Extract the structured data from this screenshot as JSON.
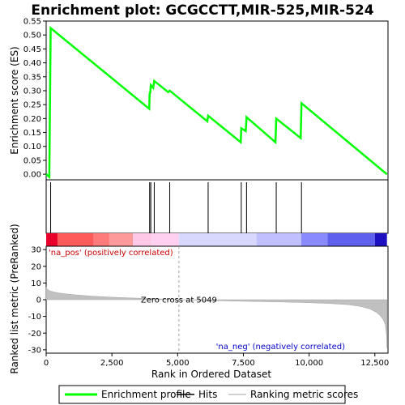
{
  "chart_data": {
    "type": "line",
    "title": "Enrichment plot: GCGCCTT,MIR-525,MIR-524",
    "es_panel": {
      "ylabel": "Enrichment score (ES)",
      "ylim": [
        -0.02,
        0.55
      ],
      "yticks": [
        0.0,
        0.05,
        0.1,
        0.15,
        0.2,
        0.25,
        0.3,
        0.35,
        0.4,
        0.45,
        0.5,
        0.55
      ],
      "ytick_labels": [
        "0.00",
        "0.05",
        "0.10",
        "0.15",
        "0.20",
        "0.25",
        "0.30",
        "0.35",
        "0.40",
        "0.45",
        "0.50",
        "0.55"
      ],
      "series": {
        "name": "Enrichment profile",
        "color": "#00ff00",
        "x": [
          0,
          120,
          170,
          3920,
          3935,
          3960,
          3980,
          4070,
          4110,
          4640,
          4700,
          6130,
          6160,
          7400,
          7420,
          7590,
          7620,
          8720,
          8750,
          9680,
          9710,
          12960
        ],
        "y": [
          0.0,
          -0.01,
          0.525,
          0.235,
          0.29,
          0.295,
          0.32,
          0.31,
          0.335,
          0.295,
          0.3,
          0.19,
          0.21,
          0.115,
          0.165,
          0.155,
          0.205,
          0.115,
          0.2,
          0.13,
          0.255,
          0.0
        ]
      }
    },
    "hits": {
      "name": "Hits",
      "x": [
        170,
        3935,
        3980,
        4110,
        4700,
        6160,
        7420,
        7620,
        8750,
        9710
      ]
    },
    "metric_panel": {
      "ylabel": "Ranked list metric (PreRanked)",
      "ylim": [
        -32,
        32
      ],
      "yticks": [
        -30,
        -20,
        -10,
        0,
        10,
        20,
        30
      ],
      "ytick_labels": [
        "-30",
        "-20",
        "-10",
        "0",
        "10",
        "20",
        "30"
      ],
      "series": {
        "name": "Ranking metric scores",
        "color": "#c0c0c0",
        "x": [
          0,
          50,
          150,
          300,
          500,
          800,
          1200,
          1800,
          2500,
          3500,
          4500,
          5049,
          6000,
          7000,
          8000,
          9000,
          10000,
          10800,
          11500,
          12000,
          12300,
          12550,
          12700,
          12820,
          12900,
          12950,
          12960
        ],
        "y": [
          7.5,
          6.2,
          5.2,
          4.6,
          4.0,
          3.4,
          2.8,
          2.1,
          1.5,
          0.9,
          0.4,
          0.0,
          -0.4,
          -0.8,
          -1.1,
          -1.4,
          -1.8,
          -2.3,
          -3.0,
          -4.2,
          -5.5,
          -7.5,
          -9.5,
          -12.0,
          -15.0,
          -22.0,
          -29.0
        ]
      },
      "zero_cross_label": "Zero cross at 5049",
      "zero_cross_x": 5049,
      "pos_label": "'na_pos' (positively correlated)",
      "neg_label": "'na_neg' (negatively correlated)"
    },
    "xaxis": {
      "label": "Rank in Ordered Dataset",
      "xlim": [
        0,
        13000
      ],
      "ticks": [
        0,
        2500,
        5000,
        7500,
        10000,
        12500
      ],
      "tick_labels": [
        "0",
        "2,500",
        "5,000",
        "7,500",
        "10,000",
        "12,500"
      ]
    },
    "color_bar": {
      "segments": [
        {
          "from": 0,
          "to": 430,
          "color": "#e8002a"
        },
        {
          "from": 430,
          "to": 1800,
          "color": "#ff5a5a"
        },
        {
          "from": 1800,
          "to": 2400,
          "color": "#ff7a7a"
        },
        {
          "from": 2400,
          "to": 3300,
          "color": "#ff9a9a"
        },
        {
          "from": 3300,
          "to": 4000,
          "color": "#ffc8e6"
        },
        {
          "from": 4000,
          "to": 5049,
          "color": "#ffd0f0"
        },
        {
          "from": 5049,
          "to": 8000,
          "color": "#d8d8ff"
        },
        {
          "from": 8000,
          "to": 9700,
          "color": "#c0c0ff"
        },
        {
          "from": 9700,
          "to": 10700,
          "color": "#8a8aff"
        },
        {
          "from": 10700,
          "to": 12500,
          "color": "#6060ee"
        },
        {
          "from": 12500,
          "to": 12960,
          "color": "#1c10c0"
        }
      ]
    },
    "legend": {
      "items": [
        {
          "label": "Enrichment profile",
          "color": "#00ff00"
        },
        {
          "label": "Hits",
          "color": "#000000"
        },
        {
          "label": "Ranking metric scores",
          "color": "#c0c0c0"
        }
      ]
    }
  }
}
